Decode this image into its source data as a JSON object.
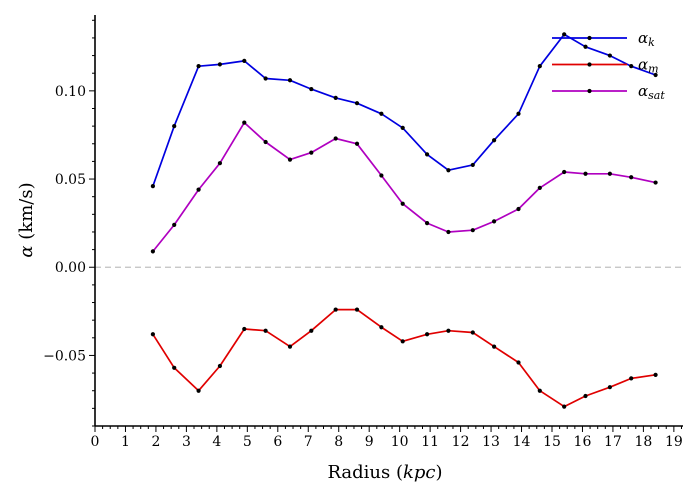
{
  "chart_data": {
    "type": "line",
    "xlabel": "Radius (kpc)",
    "ylabel": "α (km/s)",
    "xlim": [
      0,
      19.3
    ],
    "ylim": [
      -0.09,
      0.143
    ],
    "x_ticks": [
      0,
      1,
      2,
      3,
      4,
      5,
      6,
      7,
      8,
      9,
      10,
      11,
      12,
      13,
      14,
      15,
      16,
      17,
      18,
      19
    ],
    "y_ticks": [
      -0.05,
      0.0,
      0.05,
      0.1
    ],
    "y_tick_labels": [
      "−0.05",
      "0.00",
      "0.05",
      "0.10"
    ],
    "zero_line": {
      "y": 0,
      "style": "dashed",
      "color": "#c0c0c0"
    },
    "legend": {
      "position": "top-right"
    },
    "x": [
      1.9,
      2.6,
      3.4,
      4.1,
      4.9,
      5.6,
      6.4,
      7.1,
      7.9,
      8.6,
      9.4,
      10.1,
      10.9,
      11.6,
      12.4,
      13.1,
      13.9,
      14.6,
      15.4,
      16.1,
      16.9,
      17.6,
      18.4
    ],
    "series": [
      {
        "name": "α_k",
        "legend_main": "α",
        "legend_sub": "k",
        "color": "#0000e0",
        "values": [
          0.046,
          0.08,
          0.114,
          0.115,
          0.117,
          0.107,
          0.106,
          0.101,
          0.096,
          0.093,
          0.087,
          0.079,
          0.064,
          0.055,
          0.058,
          0.072,
          0.087,
          0.114,
          0.132,
          0.125,
          0.12,
          0.114,
          0.109
        ]
      },
      {
        "name": "α_m",
        "legend_main": "α",
        "legend_sub": "m",
        "color": "#e00000",
        "values": [
          -0.038,
          -0.057,
          -0.07,
          -0.056,
          -0.035,
          -0.036,
          -0.045,
          -0.036,
          -0.024,
          -0.024,
          -0.034,
          -0.042,
          -0.038,
          -0.036,
          -0.037,
          -0.045,
          -0.054,
          -0.07,
          -0.079,
          -0.073,
          -0.068,
          -0.063,
          -0.061
        ]
      },
      {
        "name": "α_sat",
        "legend_main": "α",
        "legend_sub": "sat",
        "color": "#b000c0",
        "values": [
          0.009,
          0.024,
          0.044,
          0.059,
          0.082,
          0.071,
          0.061,
          0.065,
          0.073,
          0.07,
          0.052,
          0.036,
          0.025,
          0.02,
          0.021,
          0.026,
          0.033,
          0.045,
          0.054,
          0.053,
          0.053,
          0.051,
          0.048
        ]
      }
    ]
  }
}
